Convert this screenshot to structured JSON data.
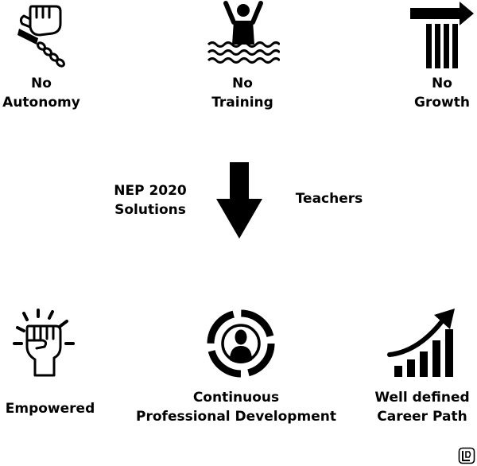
{
  "top": [
    {
      "line1": "No",
      "line2": "Autonomy",
      "icon": "chained-fist-icon"
    },
    {
      "line1": "No",
      "line2": "Training",
      "icon": "drowning-person-icon"
    },
    {
      "line1": "No",
      "line2": "Growth",
      "icon": "blocked-growth-icon"
    }
  ],
  "middle": {
    "left_line1": "NEP 2020",
    "left_line2": "Solutions",
    "right": "Teachers",
    "arrow_icon": "down-arrow-icon"
  },
  "bottom": [
    {
      "line1": "Empowered",
      "line2": "",
      "icon": "raised-fist-icon"
    },
    {
      "line1": "Continuous",
      "line2": "Professional Development",
      "icon": "person-cycle-icon"
    },
    {
      "line1": "Well defined",
      "line2": "Career Path",
      "icon": "rising-chart-icon"
    }
  ],
  "logo": "logo-icon",
  "colors": {
    "ink": "#000000",
    "background": "#ffffff"
  }
}
